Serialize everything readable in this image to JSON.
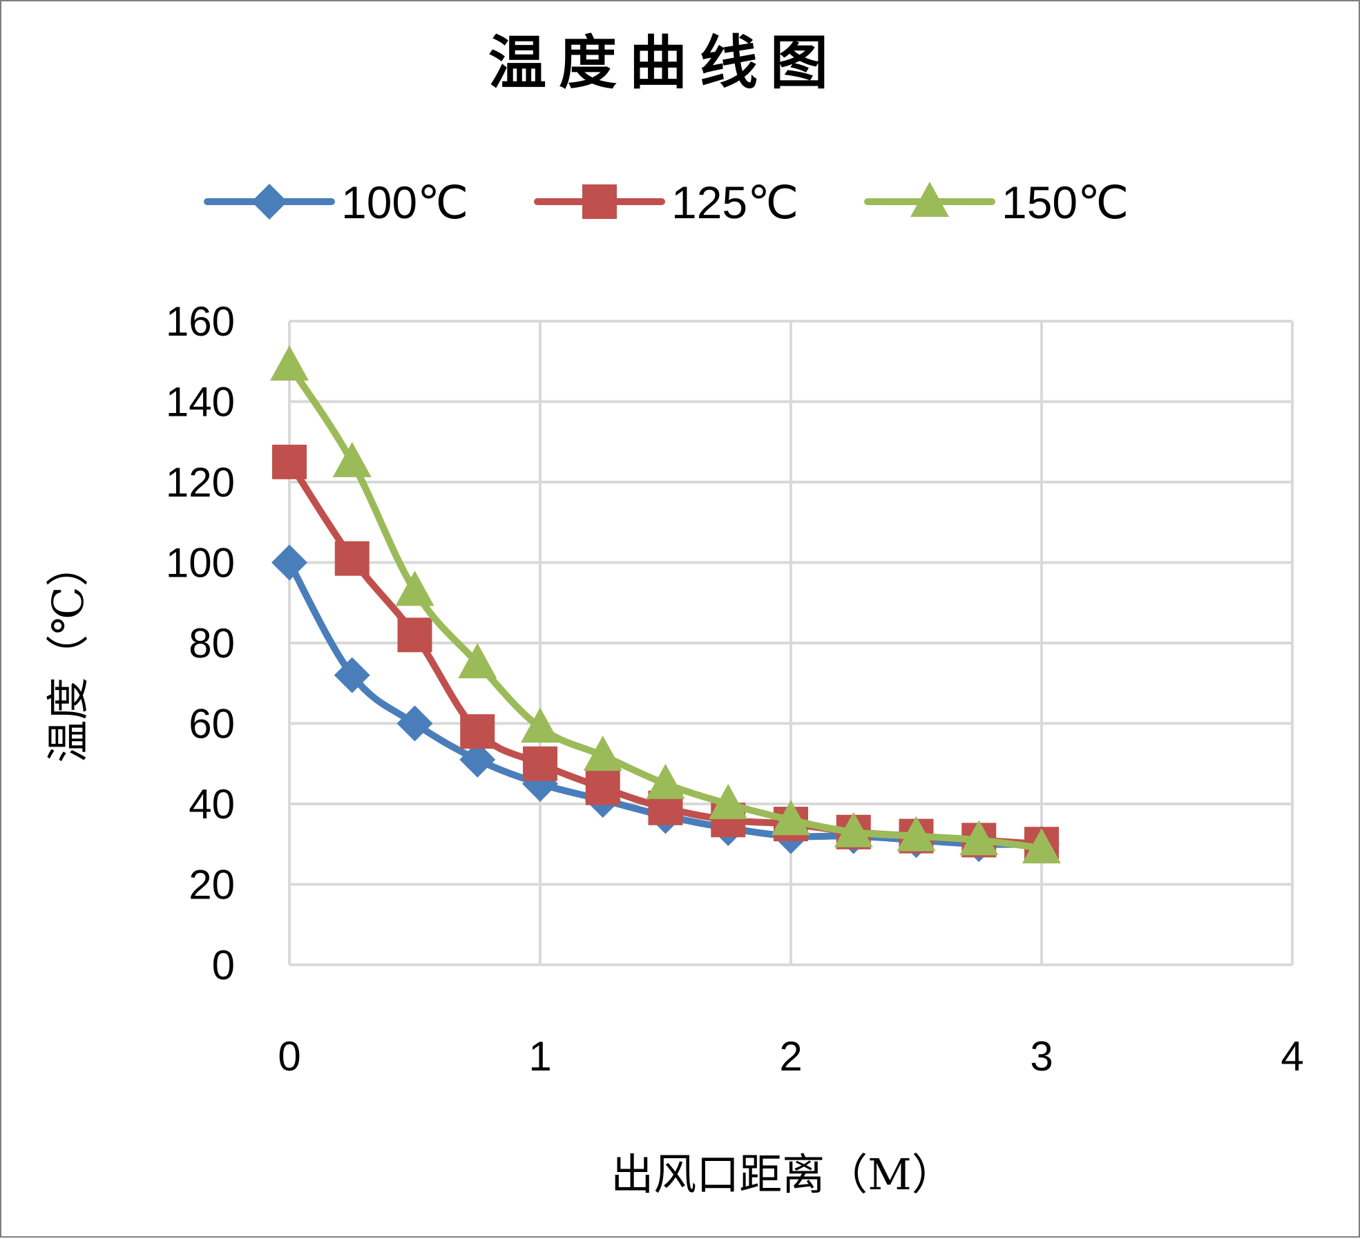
{
  "chart_data": {
    "type": "scatter",
    "title": "温度曲线图",
    "xlabel": "出风口距离（M）",
    "ylabel": "温度（℃）",
    "xlim": [
      0,
      4
    ],
    "ylim": [
      0,
      160
    ],
    "xticks": [
      "0",
      "1",
      "2",
      "3",
      "4"
    ],
    "yticks": [
      "0",
      "20",
      "40",
      "60",
      "80",
      "100",
      "120",
      "140",
      "160"
    ],
    "grid": true,
    "legend_position": "top",
    "series": [
      {
        "name": "100℃",
        "color": "#4a7ebb",
        "marker": "diamond",
        "x": [
          0,
          0.25,
          0.5,
          0.75,
          1,
          1.25,
          1.5,
          1.75,
          2,
          2.25,
          2.5,
          2.75,
          3
        ],
        "y": [
          100,
          72,
          60,
          51,
          45,
          41,
          37,
          34,
          32,
          32,
          31,
          30,
          30
        ]
      },
      {
        "name": "125℃",
        "color": "#c0504d",
        "marker": "square",
        "x": [
          0,
          0.25,
          0.5,
          0.75,
          1,
          1.25,
          1.5,
          1.75,
          2,
          2.25,
          2.5,
          2.75,
          3
        ],
        "y": [
          125,
          101,
          82,
          58,
          50,
          44,
          39,
          36,
          35,
          33,
          32,
          31,
          30
        ]
      },
      {
        "name": "150℃",
        "color": "#9bbb59",
        "marker": "triangle",
        "x": [
          0,
          0.25,
          0.5,
          0.75,
          1,
          1.25,
          1.5,
          1.75,
          2,
          2.25,
          2.5,
          2.75,
          3
        ],
        "y": [
          149,
          125,
          93,
          75,
          59,
          52,
          45,
          40,
          36,
          33,
          32,
          31,
          29
        ]
      }
    ]
  }
}
